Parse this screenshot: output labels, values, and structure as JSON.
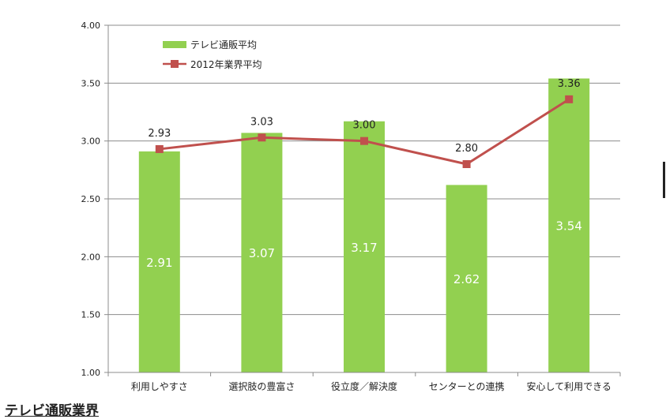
{
  "chart_data": {
    "type": "bar",
    "categories": [
      "利用しやすさ",
      "選択肢の豊富さ",
      "役立度／解決度",
      "センターとの連携",
      "安心して利用できる"
    ],
    "series": [
      {
        "name": "テレビ通販平均",
        "kind": "bar",
        "values": [
          2.91,
          3.07,
          3.17,
          2.62,
          3.54
        ],
        "color": "#92d050",
        "labels": [
          "2.91",
          "3.07",
          "3.17",
          "2.62",
          "3.54"
        ]
      },
      {
        "name": "2012年業界平均",
        "kind": "line",
        "values": [
          2.93,
          3.03,
          3.0,
          2.8,
          3.36
        ],
        "color": "#c0504d",
        "labels": [
          "2.93",
          "3.03",
          "3.00",
          "2.80",
          "3.36"
        ]
      }
    ],
    "ylim": [
      1.0,
      4.0
    ],
    "yticks": [
      "1.00",
      "1.50",
      "2.00",
      "2.50",
      "3.00",
      "3.50",
      "4.00"
    ],
    "grid": true,
    "legend_position": "top-left"
  },
  "footer": {
    "title": "テレビ通販業界"
  }
}
